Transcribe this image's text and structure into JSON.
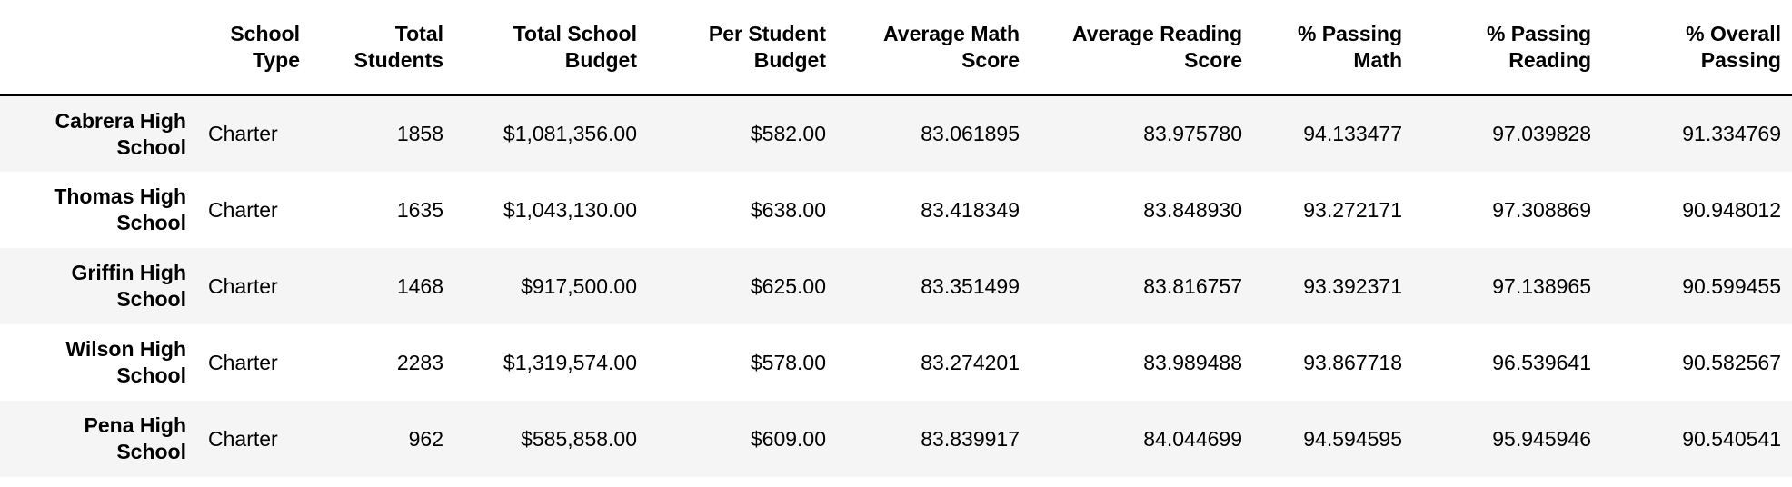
{
  "table": {
    "columns": [
      "School Type",
      "Total Students",
      "Total School Budget",
      "Per Student Budget",
      "Average Math Score",
      "Average Reading Score",
      "% Passing Math",
      "% Passing Reading",
      "% Overall Passing"
    ],
    "header_lines": [
      [
        "School",
        "Type"
      ],
      [
        "Total",
        "Students"
      ],
      [
        "Total School",
        "Budget"
      ],
      [
        "Per Student",
        "Budget"
      ],
      [
        "Average Math",
        "Score"
      ],
      [
        "Average Reading",
        "Score"
      ],
      [
        "% Passing",
        "Math"
      ],
      [
        "% Passing",
        "Reading"
      ],
      [
        "% Overall",
        "Passing"
      ]
    ],
    "rows": [
      {
        "index_lines": [
          "Cabrera High",
          "School"
        ],
        "cells": [
          "Charter",
          "1858",
          "$1,081,356.00",
          "$582.00",
          "83.061895",
          "83.975780",
          "94.133477",
          "97.039828",
          "91.334769"
        ]
      },
      {
        "index_lines": [
          "Thomas High",
          "School"
        ],
        "cells": [
          "Charter",
          "1635",
          "$1,043,130.00",
          "$638.00",
          "83.418349",
          "83.848930",
          "93.272171",
          "97.308869",
          "90.948012"
        ]
      },
      {
        "index_lines": [
          "Griffin High",
          "School"
        ],
        "cells": [
          "Charter",
          "1468",
          "$917,500.00",
          "$625.00",
          "83.351499",
          "83.816757",
          "93.392371",
          "97.138965",
          "90.599455"
        ]
      },
      {
        "index_lines": [
          "Wilson High",
          "School"
        ],
        "cells": [
          "Charter",
          "2283",
          "$1,319,574.00",
          "$578.00",
          "83.274201",
          "83.989488",
          "93.867718",
          "96.539641",
          "90.582567"
        ]
      },
      {
        "index_lines": [
          "Pena High",
          "School"
        ],
        "cells": [
          "Charter",
          "962",
          "$585,858.00",
          "$609.00",
          "83.839917",
          "84.044699",
          "94.594595",
          "95.945946",
          "90.540541"
        ]
      }
    ]
  }
}
